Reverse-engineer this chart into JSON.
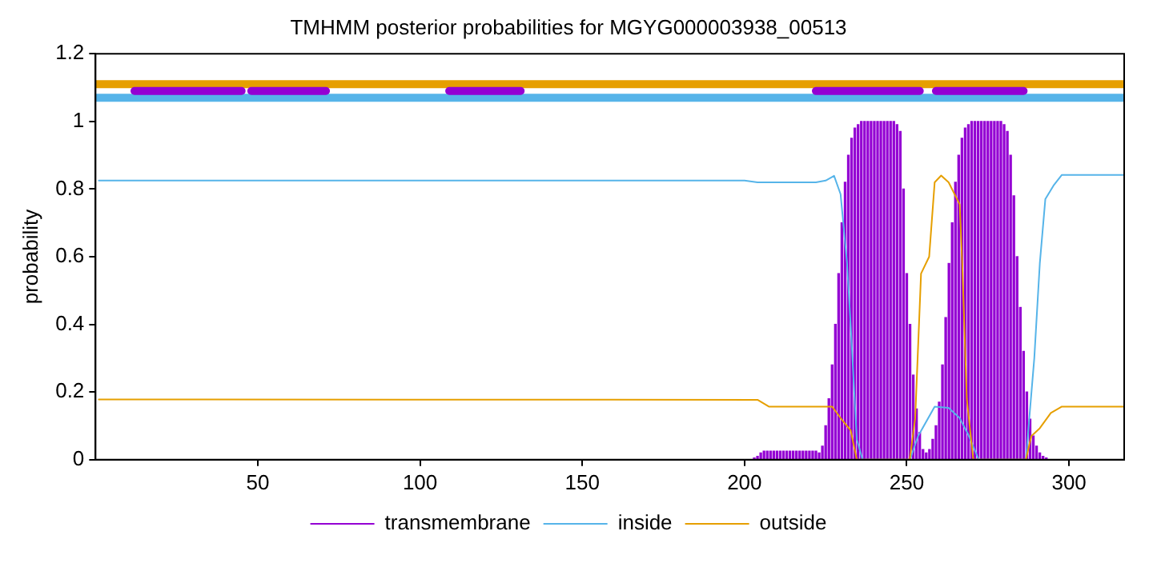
{
  "chart_data": {
    "type": "line",
    "title": "TMHMM posterior probabilities for MGYG000003938_00513",
    "ylabel": "probability",
    "xlim": [
      0,
      317
    ],
    "xticks": [
      50,
      100,
      150,
      200,
      250,
      300
    ],
    "ylim": [
      0,
      1.2
    ],
    "yticks": [
      0,
      0.2,
      0.4,
      0.6,
      0.8,
      1,
      1.2
    ],
    "grid": false,
    "legend": "bottom",
    "marker": "none",
    "line_style": "solid",
    "series": [
      {
        "name": "transmembrane",
        "type": "bar",
        "color": "#9400d3",
        "x": [
          203,
          204,
          205,
          206,
          207,
          208,
          209,
          210,
          211,
          212,
          213,
          214,
          215,
          216,
          217,
          218,
          219,
          220,
          221,
          222,
          223,
          224,
          225,
          226,
          227,
          228,
          229,
          230,
          231,
          232,
          233,
          234,
          235,
          236,
          237,
          238,
          239,
          240,
          241,
          242,
          243,
          244,
          245,
          246,
          247,
          248,
          249,
          250,
          251,
          252,
          253,
          254,
          255,
          256,
          257,
          258,
          259,
          260,
          261,
          262,
          263,
          264,
          265,
          266,
          267,
          268,
          269,
          270,
          271,
          272,
          273,
          274,
          275,
          276,
          277,
          278,
          279,
          280,
          281,
          282,
          283,
          284,
          285,
          286,
          287,
          288,
          289,
          290,
          291,
          292,
          293
        ],
        "values": [
          0.005,
          0.01,
          0.02,
          0.025,
          0.025,
          0.025,
          0.025,
          0.025,
          0.025,
          0.025,
          0.025,
          0.025,
          0.025,
          0.025,
          0.025,
          0.025,
          0.025,
          0.025,
          0.025,
          0.025,
          0.02,
          0.04,
          0.1,
          0.18,
          0.28,
          0.4,
          0.55,
          0.7,
          0.82,
          0.9,
          0.95,
          0.98,
          0.99,
          1,
          1,
          1,
          1,
          1,
          1,
          1,
          1,
          1,
          1,
          1,
          0.99,
          0.97,
          0.8,
          0.55,
          0.4,
          0.25,
          0.15,
          0.08,
          0.03,
          0.02,
          0.03,
          0.06,
          0.1,
          0.17,
          0.28,
          0.42,
          0.58,
          0.7,
          0.82,
          0.9,
          0.95,
          0.98,
          0.99,
          1,
          1,
          1,
          1,
          1,
          1,
          1,
          1,
          1,
          1,
          0.99,
          0.97,
          0.9,
          0.78,
          0.6,
          0.45,
          0.32,
          0.2,
          0.12,
          0.07,
          0.04,
          0.02,
          0.01,
          0.005
        ]
      },
      {
        "name": "inside",
        "color": "#56b4e9",
        "x": [
          1,
          200,
          204,
          222,
          225,
          227.6,
          229.6,
          231.6,
          232.7,
          234.6,
          236.4,
          251,
          253.5,
          258.6,
          262.9,
          266.3,
          268.8,
          272.2,
          286.7,
          289.3,
          291,
          292.7,
          295.2,
          297.8,
          317
        ],
        "values": [
          0.825,
          0.825,
          0.82,
          0.82,
          0.825,
          0.839,
          0.785,
          0.58,
          0.4,
          0.06,
          0,
          0,
          0.07,
          0.157,
          0.153,
          0.123,
          0.077,
          0,
          0,
          0.3,
          0.58,
          0.77,
          0.81,
          0.842,
          0.842
        ]
      },
      {
        "name": "outside",
        "color": "#e69f00",
        "x": [
          1,
          204,
          207.5,
          227,
          229.6,
          232.7,
          234.6,
          250.9,
          252.6,
          254.4,
          256.9,
          258.6,
          260.6,
          262.9,
          266.3,
          267.1,
          268.5,
          270.5,
          286.7,
          288.4,
          291,
          294.4,
          297.8,
          317
        ],
        "values": [
          0.178,
          0.177,
          0.157,
          0.157,
          0.123,
          0.087,
          0,
          0,
          0.123,
          0.55,
          0.6,
          0.82,
          0.84,
          0.82,
          0.755,
          0.58,
          0.18,
          0,
          0,
          0.07,
          0.093,
          0.138,
          0.157,
          0.157
        ]
      },
      {
        "color": "#e69f00",
        "x": [
          0,
          317
        ],
        "values": [
          1.11,
          1.11
        ]
      },
      {
        "color": "#56b4e9",
        "x": [
          0,
          317
        ],
        "values": [
          1.07,
          1.07
        ]
      },
      {
        "color": "#9400d3",
        "x": [
          12,
          45,
          46,
          48,
          71,
          90,
          109,
          131,
          176,
          222,
          254,
          256,
          259,
          286
        ],
        "values": [
          1.09,
          1.09,
          null,
          1.09,
          1.09,
          null,
          1.09,
          1.09,
          null,
          1.09,
          1.09,
          null,
          1.09,
          1.09
        ]
      }
    ]
  }
}
